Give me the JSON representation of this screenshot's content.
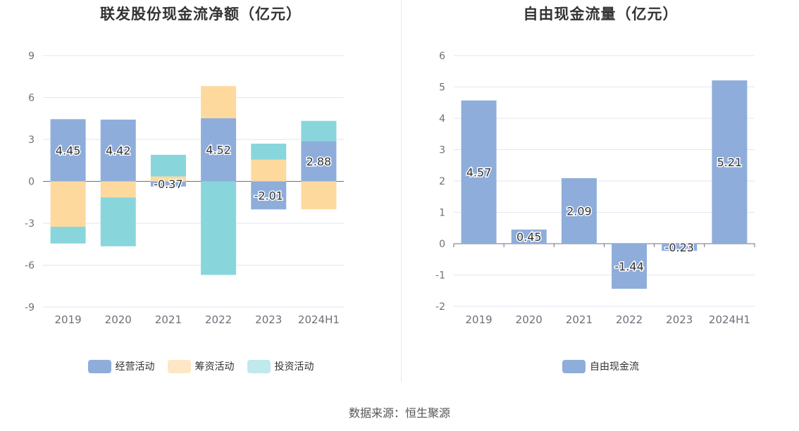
{
  "source": "数据来源：恒生聚源",
  "colors": {
    "operating": "#8eaddb",
    "financing": "#fdd99e",
    "investing": "#88d6db",
    "fcf": "#8eaddb"
  },
  "chart_data": [
    {
      "type": "bar",
      "stacked": true,
      "title": "联发股份现金流净额（亿元）",
      "categories": [
        "2019",
        "2020",
        "2021",
        "2022",
        "2023",
        "2024H1"
      ],
      "ylim": [
        -9,
        9
      ],
      "yticks": [
        9,
        6,
        3,
        0,
        -3,
        -6,
        -9
      ],
      "ytick_labels": [
        "9",
        "6",
        "3",
        "0",
        "-3",
        "-6",
        "-9"
      ],
      "grid": true,
      "legend_position": "bottom-center",
      "series": [
        {
          "name": "经营活动",
          "color_key": "operating",
          "values": [
            4.45,
            4.42,
            -0.37,
            4.52,
            -2.01,
            2.88
          ],
          "labels": [
            "4.45",
            "4.42",
            "-0.37",
            "4.52",
            "-2.01",
            "2.88"
          ]
        },
        {
          "name": "筹资活动",
          "color_key": "financing",
          "values": [
            -3.25,
            -1.15,
            0.35,
            2.3,
            1.55,
            -2.0
          ]
        },
        {
          "name": "投资活动",
          "color_key": "investing",
          "values": [
            -1.2,
            -3.5,
            1.55,
            -6.7,
            1.15,
            1.45
          ]
        }
      ]
    },
    {
      "type": "bar",
      "title": "自由现金流量（亿元）",
      "categories": [
        "2019",
        "2020",
        "2021",
        "2022",
        "2023",
        "2024H1"
      ],
      "ylim": [
        -2,
        6
      ],
      "yticks": [
        6,
        5,
        4,
        3,
        2,
        1,
        0,
        -1,
        -2
      ],
      "ytick_labels": [
        "6",
        "5",
        "4",
        "3",
        "2",
        "1",
        "0",
        "-1",
        "-2"
      ],
      "grid": true,
      "legend_position": "bottom-center",
      "series": [
        {
          "name": "自由现金流",
          "color_key": "fcf",
          "values": [
            4.57,
            0.45,
            2.09,
            -1.44,
            -0.23,
            5.21
          ],
          "labels": [
            "4.57",
            "0.45",
            "2.09",
            "-1.44",
            "-0.23",
            "5.21"
          ]
        }
      ]
    }
  ]
}
